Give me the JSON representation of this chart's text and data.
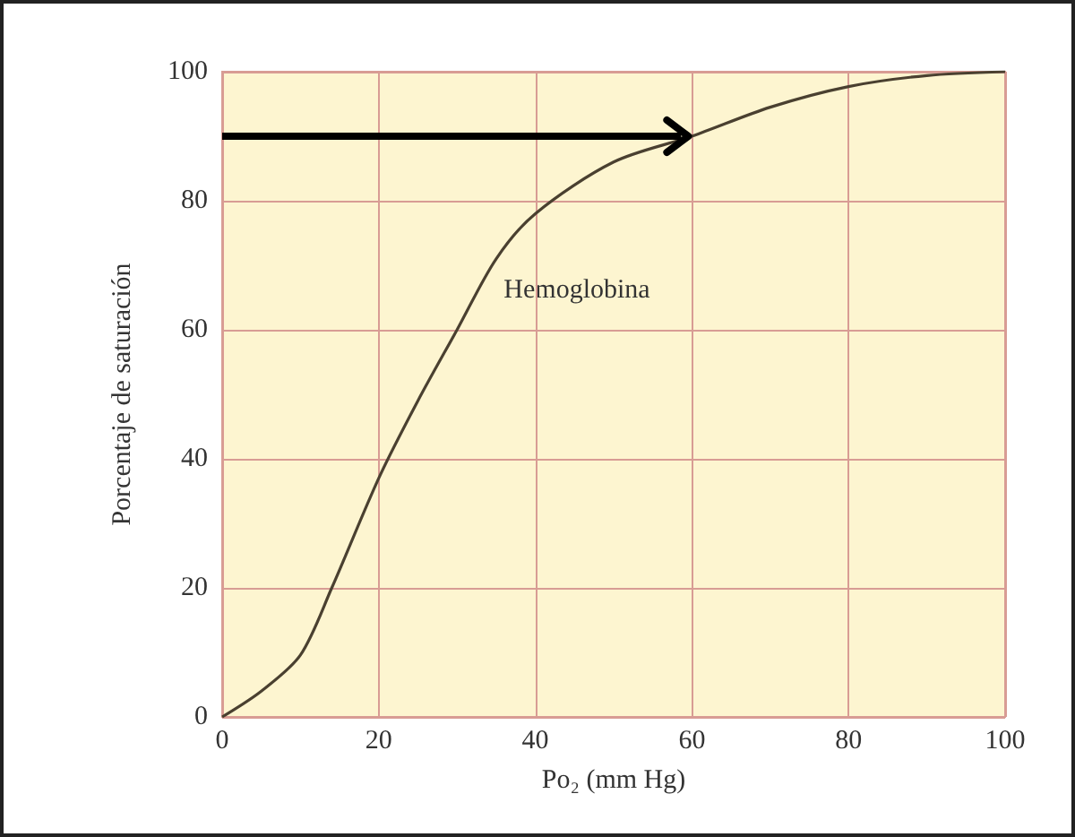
{
  "chart_data": {
    "type": "line",
    "xlabel": "Po₂ (mm Hg)",
    "ylabel": "Porcentaje de saturación",
    "x": [
      0,
      5,
      10,
      14,
      20,
      25,
      30,
      35,
      40,
      50,
      60,
      70,
      80,
      90,
      100
    ],
    "series": [
      {
        "color": "#4a4030",
        "values": [
          0,
          4,
          9.6,
          20,
          37,
          49,
          60,
          71,
          78,
          86,
          90,
          94.5,
          97.7,
          99.4,
          100
        ]
      }
    ],
    "xlim": [
      0,
      100
    ],
    "xticks": [
      0,
      20,
      40,
      60,
      80,
      100
    ],
    "ylim": [
      0,
      100
    ],
    "yticks": [
      0,
      20,
      40,
      60,
      80,
      100
    ],
    "grid": true,
    "marker": "none",
    "line_style": "solid",
    "annotations": [
      "Hemoglobina"
    ],
    "ref_lines": [
      {
        "axis": "y",
        "value": 90,
        "color": "#000000"
      }
    ]
  }
}
